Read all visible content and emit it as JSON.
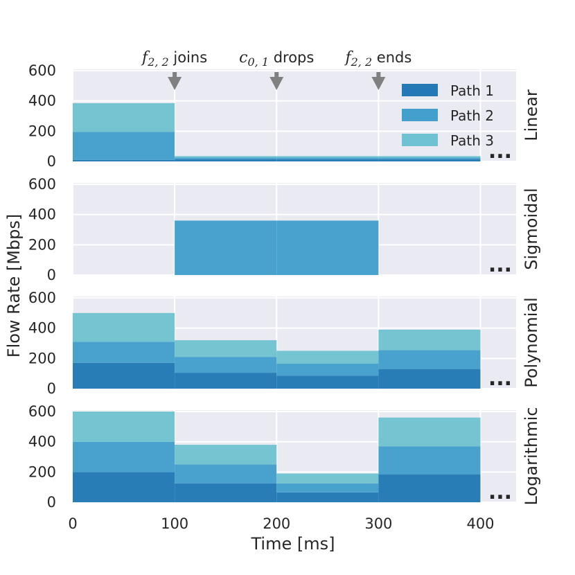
{
  "chart_data": {
    "type": "area",
    "stacked": true,
    "xlabel": "Time [ms]",
    "ylabel": "Flow Rate [Mbps]",
    "xlim": [
      0,
      435
    ],
    "ylim": [
      0,
      600
    ],
    "x_ticks": [
      "0",
      "100",
      "200",
      "300",
      "400"
    ],
    "y_ticks": [
      "0",
      "200",
      "400",
      "600"
    ],
    "grid": true,
    "segments_ms": [
      [
        0,
        100
      ],
      [
        100,
        200
      ],
      [
        200,
        300
      ],
      [
        300,
        400
      ]
    ],
    "legend": {
      "placement": "top-right",
      "entries": [
        "Path 1",
        "Path 2",
        "Path 3"
      ]
    },
    "series_colors": [
      "#2279b5",
      "#439fcb",
      "#6fc2d1"
    ],
    "annotations": [
      {
        "x": 100,
        "label": "f",
        "sub": "2, 2",
        "suffix": " joins"
      },
      {
        "x": 200,
        "label": "c",
        "sub": "0, 1",
        "suffix": " drops"
      },
      {
        "x": 300,
        "label": "f",
        "sub": "2, 2",
        "suffix": " ends"
      }
    ],
    "ellipsis": "...",
    "panels": [
      {
        "label": "Linear",
        "series": [
          {
            "name": "Path 1",
            "values": [
              10,
              15,
              15,
              15
            ]
          },
          {
            "name": "Path 2",
            "values": [
              185,
              10,
              10,
              10
            ]
          },
          {
            "name": "Path 3",
            "values": [
              190,
              10,
              10,
              10
            ]
          }
        ]
      },
      {
        "label": "Sigmoidal",
        "series": [
          {
            "name": "Path 1",
            "values": [
              0,
              0,
              0,
              0
            ]
          },
          {
            "name": "Path 2",
            "values": [
              0,
              360,
              360,
              0
            ]
          },
          {
            "name": "Path 3",
            "values": [
              0,
              0,
              0,
              0
            ]
          }
        ]
      },
      {
        "label": "Polynomial",
        "series": [
          {
            "name": "Path 1",
            "values": [
              170,
              105,
              85,
              130
            ]
          },
          {
            "name": "Path 2",
            "values": [
              140,
              105,
              80,
              125
            ]
          },
          {
            "name": "Path 3",
            "values": [
              190,
              110,
              85,
              135
            ]
          }
        ]
      },
      {
        "label": "Logarithmic",
        "series": [
          {
            "name": "Path 1",
            "values": [
              200,
              125,
              65,
              185
            ]
          },
          {
            "name": "Path 2",
            "values": [
              200,
              125,
              60,
              185
            ]
          },
          {
            "name": "Path 3",
            "values": [
              200,
              130,
              65,
              190
            ]
          }
        ]
      }
    ]
  }
}
